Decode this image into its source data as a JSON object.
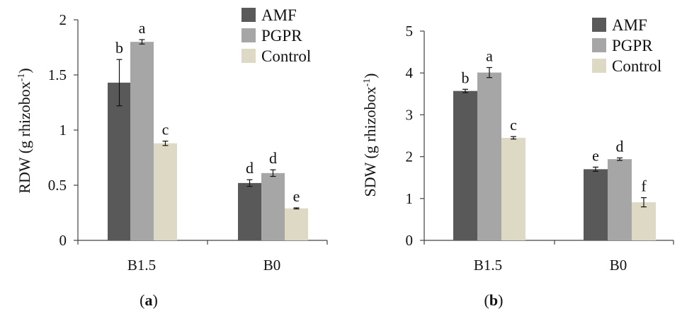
{
  "chart_data": [
    {
      "type": "bar",
      "panel_label": "a",
      "ylabel": "RDW (g rhizobox",
      "ylabel_sup": "-1",
      "ylabel_close": ")",
      "categories": [
        "B1.5",
        "B0"
      ],
      "ylim": [
        0,
        2
      ],
      "yticks": [
        0,
        0.5,
        1,
        1.5,
        2
      ],
      "yticklabels": [
        "0",
        "0.5",
        "1",
        "1.5",
        "2"
      ],
      "legend": "top-right",
      "grid": false,
      "series": [
        {
          "name": "AMF",
          "color": "#595959",
          "values": [
            1.43,
            0.52
          ],
          "errors": [
            0.21,
            0.03
          ],
          "letters": [
            "b",
            "d"
          ]
        },
        {
          "name": "PGPR",
          "color": "#a6a6a6",
          "values": [
            1.8,
            0.61
          ],
          "errors": [
            0.02,
            0.03
          ],
          "letters": [
            "a",
            "d"
          ]
        },
        {
          "name": "Control",
          "color": "#ddd9c4",
          "values": [
            0.88,
            0.29
          ],
          "errors": [
            0.02,
            0.005
          ],
          "letters": [
            "c",
            "e"
          ]
        }
      ]
    },
    {
      "type": "bar",
      "panel_label": "b",
      "ylabel": "SDW (g rhizobox",
      "ylabel_sup": "-1",
      "ylabel_close": ")",
      "categories": [
        "B1.5",
        "B0"
      ],
      "ylim": [
        0,
        5
      ],
      "yticks": [
        0,
        1,
        2,
        3,
        4,
        5
      ],
      "yticklabels": [
        "0",
        "1",
        "2",
        "3",
        "4",
        "5"
      ],
      "legend": "top-right",
      "grid": false,
      "series": [
        {
          "name": "AMF",
          "color": "#595959",
          "values": [
            3.57,
            1.7
          ],
          "errors": [
            0.04,
            0.05
          ],
          "letters": [
            "b",
            "e"
          ]
        },
        {
          "name": "PGPR",
          "color": "#a6a6a6",
          "values": [
            4.01,
            1.94
          ],
          "errors": [
            0.12,
            0.03
          ],
          "letters": [
            "a",
            "d"
          ]
        },
        {
          "name": "Control",
          "color": "#ddd9c4",
          "values": [
            2.45,
            0.91
          ],
          "errors": [
            0.03,
            0.11
          ],
          "letters": [
            "c",
            "f"
          ]
        }
      ]
    }
  ]
}
